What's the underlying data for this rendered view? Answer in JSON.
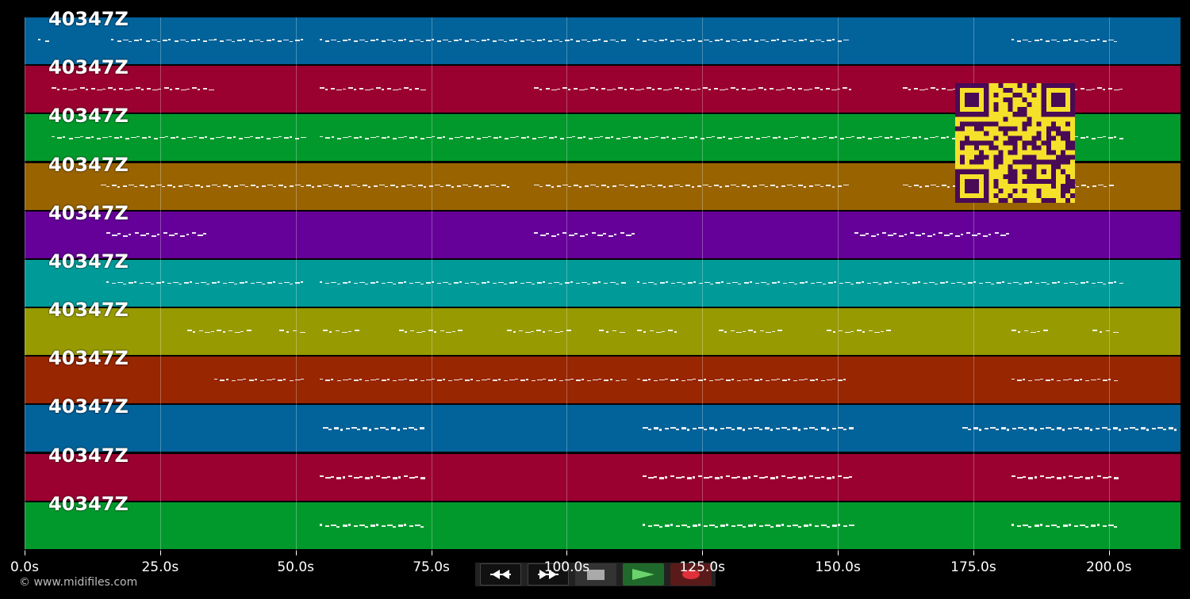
{
  "colors": {
    "background": "#000000",
    "qr_fg": "#4a0a55",
    "qr_bg": "#f5e12a"
  },
  "tracks": [
    {
      "label": "40347Z",
      "color": "#02629a"
    },
    {
      "label": "40347Z",
      "color": "#9a0030"
    },
    {
      "label": "40347Z",
      "color": "#02992c"
    },
    {
      "label": "40347Z",
      "color": "#996300"
    },
    {
      "label": "40347Z",
      "color": "#650098"
    },
    {
      "label": "40347Z",
      "color": "#009a99"
    },
    {
      "label": "40347Z",
      "color": "#979a00"
    },
    {
      "label": "40347Z",
      "color": "#972601"
    },
    {
      "label": "40347Z",
      "color": "#02629a"
    },
    {
      "label": "40347Z",
      "color": "#9a0030"
    },
    {
      "label": "40347Z",
      "color": "#02992c"
    }
  ],
  "x_axis": {
    "ticks": [
      "0.0s",
      "25.0s",
      "50.0s",
      "75.0s",
      "100.0s",
      "125.0s",
      "150.0s",
      "175.0s",
      "200.0s"
    ],
    "tick_values": [
      0,
      25,
      50,
      75,
      100,
      125,
      150,
      175,
      200
    ],
    "max": 213.2
  },
  "transport": {
    "buttons": [
      {
        "name": "rewind-button",
        "icon": "rewind-icon"
      },
      {
        "name": "fast-forward-button",
        "icon": "fast-forward-icon"
      },
      {
        "name": "stop-button",
        "icon": "stop-icon"
      },
      {
        "name": "play-button",
        "icon": "play-icon"
      },
      {
        "name": "record-button",
        "icon": "record-icon"
      }
    ]
  },
  "note_segments": [
    [
      [
        2.5,
        5
      ],
      [
        16,
        35
      ],
      [
        35,
        52
      ],
      [
        54.5,
        111
      ],
      [
        113,
        152
      ],
      [
        182,
        202
      ]
    ],
    [
      [
        5,
        35
      ],
      [
        54.5,
        74
      ],
      [
        94,
        153
      ],
      [
        162,
        203
      ]
    ],
    [
      [
        5,
        52
      ],
      [
        54.5,
        203
      ]
    ],
    [
      [
        14,
        90
      ],
      [
        94,
        152
      ],
      [
        162,
        201
      ]
    ],
    [
      [
        15,
        34
      ],
      [
        94,
        113
      ],
      [
        153,
        182
      ]
    ],
    [
      [
        15,
        52
      ],
      [
        54.5,
        111
      ],
      [
        113,
        203
      ]
    ],
    [
      [
        30,
        42
      ],
      [
        47,
        52
      ],
      [
        55,
        62
      ],
      [
        69,
        81
      ],
      [
        89,
        101
      ],
      [
        106,
        111
      ],
      [
        113,
        121
      ],
      [
        128,
        140
      ],
      [
        148,
        160
      ],
      [
        182,
        189
      ],
      [
        197,
        202
      ]
    ],
    [
      [
        35,
        52
      ],
      [
        54.5,
        111
      ],
      [
        113,
        152
      ],
      [
        182,
        202
      ]
    ],
    [
      [
        55,
        74
      ],
      [
        114,
        153
      ],
      [
        173,
        213
      ]
    ],
    [
      [
        54.5,
        74
      ],
      [
        114,
        153
      ],
      [
        182,
        202
      ]
    ],
    [
      [
        54.5,
        74
      ],
      [
        114,
        153
      ],
      [
        182,
        202
      ]
    ]
  ],
  "copyright": "© www.midifiles.com"
}
